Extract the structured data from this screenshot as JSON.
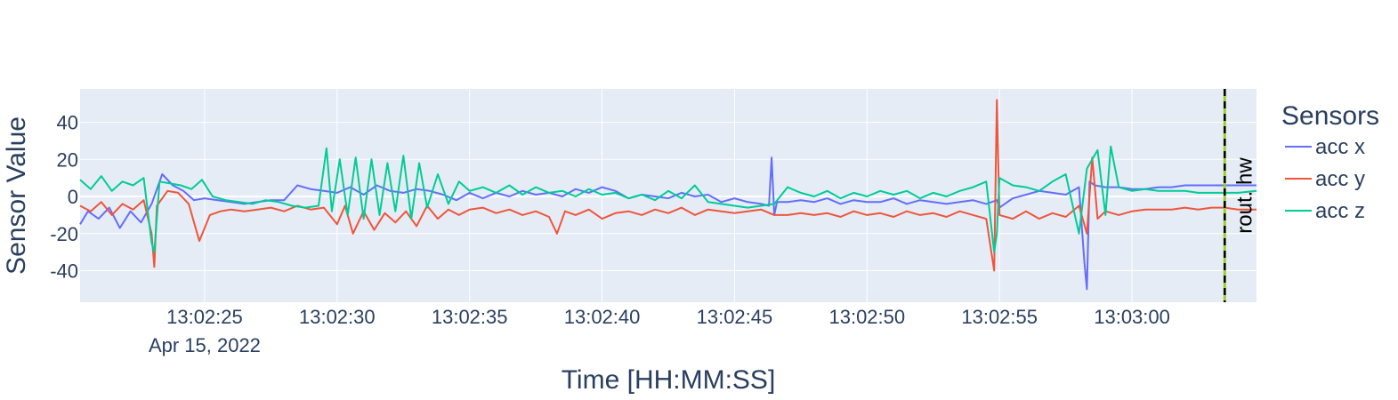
{
  "chart_data": {
    "type": "line",
    "xlabel": "Time [HH:MM:SS]",
    "ylabel": "Sensor Value",
    "x_range_seconds": [
      20.3,
      64.7
    ],
    "ylim": [
      -57,
      58
    ],
    "y_ticks": [
      -40,
      -20,
      0,
      20,
      40
    ],
    "x_ticks": [
      {
        "t": 25,
        "label": "13:02:25",
        "sub": "Apr 15, 2022"
      },
      {
        "t": 30,
        "label": "13:02:30",
        "sub": ""
      },
      {
        "t": 35,
        "label": "13:02:35",
        "sub": ""
      },
      {
        "t": 40,
        "label": "13:02:40",
        "sub": ""
      },
      {
        "t": 45,
        "label": "13:02:45",
        "sub": ""
      },
      {
        "t": 50,
        "label": "13:02:50",
        "sub": ""
      },
      {
        "t": 55,
        "label": "13:02:55",
        "sub": ""
      },
      {
        "t": 60,
        "label": "13:03:00",
        "sub": ""
      }
    ],
    "grid": true,
    "legend": {
      "title": "Sensors",
      "placement": "right"
    },
    "vertical_marker": {
      "t": 63.5,
      "label": "rout. hw"
    },
    "series": [
      {
        "name": "acc x",
        "color": "#636efa",
        "points": [
          [
            20.3,
            -15
          ],
          [
            20.6,
            -8
          ],
          [
            21,
            -12
          ],
          [
            21.4,
            -6
          ],
          [
            21.8,
            -17
          ],
          [
            22.2,
            -8
          ],
          [
            22.6,
            -14
          ],
          [
            23,
            -4
          ],
          [
            23.4,
            12
          ],
          [
            23.8,
            6
          ],
          [
            24.2,
            3
          ],
          [
            24.6,
            -2
          ],
          [
            25,
            -1
          ],
          [
            25.5,
            -2
          ],
          [
            26,
            -3
          ],
          [
            26.5,
            -4
          ],
          [
            27,
            -3
          ],
          [
            27.5,
            -2
          ],
          [
            28,
            -2
          ],
          [
            28.5,
            6
          ],
          [
            29,
            4
          ],
          [
            29.5,
            3
          ],
          [
            30,
            2
          ],
          [
            30.5,
            5
          ],
          [
            31,
            1
          ],
          [
            31.5,
            6
          ],
          [
            32,
            3
          ],
          [
            32.5,
            2
          ],
          [
            33,
            4
          ],
          [
            33.5,
            3
          ],
          [
            34,
            1
          ],
          [
            34.5,
            -2
          ],
          [
            35,
            2
          ],
          [
            35.5,
            -1
          ],
          [
            36,
            2
          ],
          [
            36.5,
            0
          ],
          [
            37,
            3
          ],
          [
            37.5,
            1
          ],
          [
            38,
            2
          ],
          [
            38.5,
            0
          ],
          [
            39,
            4
          ],
          [
            39.5,
            2
          ],
          [
            40,
            5
          ],
          [
            40.5,
            3
          ],
          [
            41,
            -1
          ],
          [
            41.5,
            1
          ],
          [
            42,
            0
          ],
          [
            42.5,
            -1
          ],
          [
            43,
            2
          ],
          [
            43.5,
            0
          ],
          [
            44,
            1
          ],
          [
            44.5,
            -3
          ],
          [
            45,
            -1
          ],
          [
            45.5,
            -3
          ],
          [
            46,
            -4
          ],
          [
            46.3,
            -5
          ],
          [
            46.4,
            21
          ],
          [
            46.5,
            -10
          ],
          [
            46.6,
            -3
          ],
          [
            47,
            -3
          ],
          [
            47.5,
            -2
          ],
          [
            48,
            -3
          ],
          [
            48.5,
            -1
          ],
          [
            49,
            -4
          ],
          [
            49.5,
            -2
          ],
          [
            50,
            -3
          ],
          [
            50.5,
            -3
          ],
          [
            51,
            -1
          ],
          [
            51.5,
            -4
          ],
          [
            52,
            -2
          ],
          [
            52.5,
            -3
          ],
          [
            53,
            -4
          ],
          [
            53.5,
            -3
          ],
          [
            54,
            -2
          ],
          [
            54.5,
            -4
          ],
          [
            54.9,
            -2
          ],
          [
            55,
            -6
          ],
          [
            55.5,
            -1
          ],
          [
            56,
            1
          ],
          [
            56.5,
            3
          ],
          [
            57,
            2
          ],
          [
            57.5,
            1
          ],
          [
            58,
            5
          ],
          [
            58.2,
            -35
          ],
          [
            58.3,
            -50
          ],
          [
            58.4,
            8
          ],
          [
            58.6,
            6
          ],
          [
            59,
            5
          ],
          [
            59.5,
            5
          ],
          [
            60,
            4
          ],
          [
            60.5,
            4
          ],
          [
            61,
            5
          ],
          [
            61.5,
            5
          ],
          [
            62,
            6
          ],
          [
            62.5,
            6
          ],
          [
            63,
            6
          ],
          [
            63.5,
            6
          ],
          [
            64,
            6
          ],
          [
            64.7,
            6
          ]
        ]
      },
      {
        "name": "acc y",
        "color": "#ef553b",
        "points": [
          [
            20.3,
            -5
          ],
          [
            20.7,
            -8
          ],
          [
            21.1,
            -3
          ],
          [
            21.5,
            -10
          ],
          [
            21.9,
            -4
          ],
          [
            22.3,
            -7
          ],
          [
            22.7,
            -2
          ],
          [
            23,
            -20
          ],
          [
            23.1,
            -38
          ],
          [
            23.2,
            -5
          ],
          [
            23.6,
            3
          ],
          [
            24,
            2
          ],
          [
            24.4,
            -4
          ],
          [
            24.8,
            -24
          ],
          [
            25.2,
            -10
          ],
          [
            25.6,
            -8
          ],
          [
            26,
            -7
          ],
          [
            26.5,
            -8
          ],
          [
            27,
            -7
          ],
          [
            27.5,
            -6
          ],
          [
            28,
            -8
          ],
          [
            28.5,
            -5
          ],
          [
            29,
            -7
          ],
          [
            29.5,
            -6
          ],
          [
            30,
            -15
          ],
          [
            30.3,
            -5
          ],
          [
            30.6,
            -20
          ],
          [
            31,
            -8
          ],
          [
            31.4,
            -18
          ],
          [
            31.8,
            -9
          ],
          [
            32.2,
            -14
          ],
          [
            32.6,
            -8
          ],
          [
            33,
            -16
          ],
          [
            33.4,
            -5
          ],
          [
            33.8,
            -12
          ],
          [
            34.2,
            -7
          ],
          [
            34.6,
            -10
          ],
          [
            35,
            -7
          ],
          [
            35.5,
            -6
          ],
          [
            36,
            -9
          ],
          [
            36.5,
            -7
          ],
          [
            37,
            -10
          ],
          [
            37.5,
            -8
          ],
          [
            38,
            -11
          ],
          [
            38.3,
            -20
          ],
          [
            38.6,
            -8
          ],
          [
            39,
            -10
          ],
          [
            39.5,
            -7
          ],
          [
            40,
            -12
          ],
          [
            40.5,
            -9
          ],
          [
            41,
            -8
          ],
          [
            41.5,
            -10
          ],
          [
            42,
            -7
          ],
          [
            42.5,
            -9
          ],
          [
            43,
            -6
          ],
          [
            43.5,
            -10
          ],
          [
            44,
            -7
          ],
          [
            44.5,
            -8
          ],
          [
            45,
            -9
          ],
          [
            45.5,
            -8
          ],
          [
            46,
            -7
          ],
          [
            46.5,
            -10
          ],
          [
            47,
            -10
          ],
          [
            47.5,
            -9
          ],
          [
            48,
            -10
          ],
          [
            48.5,
            -9
          ],
          [
            49,
            -11
          ],
          [
            49.5,
            -8
          ],
          [
            50,
            -10
          ],
          [
            50.5,
            -9
          ],
          [
            51,
            -11
          ],
          [
            51.5,
            -8
          ],
          [
            52,
            -10
          ],
          [
            52.5,
            -9
          ],
          [
            53,
            -11
          ],
          [
            53.5,
            -8
          ],
          [
            54,
            -10
          ],
          [
            54.5,
            -12
          ],
          [
            54.8,
            -40
          ],
          [
            54.9,
            52
          ],
          [
            55,
            -10
          ],
          [
            55.5,
            -12
          ],
          [
            56,
            -8
          ],
          [
            56.5,
            -12
          ],
          [
            57,
            -9
          ],
          [
            57.5,
            -11
          ],
          [
            58,
            -5
          ],
          [
            58.3,
            -20
          ],
          [
            58.5,
            21
          ],
          [
            58.7,
            -12
          ],
          [
            59,
            -8
          ],
          [
            59.5,
            -10
          ],
          [
            60,
            -8
          ],
          [
            60.5,
            -7
          ],
          [
            61,
            -7
          ],
          [
            61.5,
            -7
          ],
          [
            62,
            -6
          ],
          [
            62.5,
            -7
          ],
          [
            63,
            -6
          ],
          [
            63.5,
            -6
          ],
          [
            64,
            -7
          ],
          [
            64.7,
            -7
          ]
        ]
      },
      {
        "name": "acc z",
        "color": "#00cc96",
        "points": [
          [
            20.3,
            9
          ],
          [
            20.7,
            4
          ],
          [
            21.1,
            11
          ],
          [
            21.5,
            3
          ],
          [
            21.9,
            8
          ],
          [
            22.3,
            6
          ],
          [
            22.7,
            10
          ],
          [
            23,
            -25
          ],
          [
            23.1,
            -30
          ],
          [
            23.3,
            8
          ],
          [
            23.7,
            7
          ],
          [
            24.1,
            6
          ],
          [
            24.5,
            4
          ],
          [
            24.9,
            9
          ],
          [
            25.3,
            0
          ],
          [
            25.8,
            -2
          ],
          [
            26.3,
            -3
          ],
          [
            26.8,
            -4
          ],
          [
            27.3,
            -2
          ],
          [
            27.8,
            -3
          ],
          [
            28.3,
            -5
          ],
          [
            28.8,
            -6
          ],
          [
            29.3,
            -5
          ],
          [
            29.6,
            26
          ],
          [
            29.8,
            -8
          ],
          [
            30.1,
            20
          ],
          [
            30.4,
            -10
          ],
          [
            30.7,
            21
          ],
          [
            31,
            -12
          ],
          [
            31.3,
            20
          ],
          [
            31.6,
            -10
          ],
          [
            31.9,
            18
          ],
          [
            32.2,
            -8
          ],
          [
            32.5,
            22
          ],
          [
            32.8,
            -12
          ],
          [
            33.1,
            18
          ],
          [
            33.4,
            -6
          ],
          [
            33.8,
            12
          ],
          [
            34.2,
            -4
          ],
          [
            34.6,
            8
          ],
          [
            35,
            3
          ],
          [
            35.5,
            5
          ],
          [
            36,
            2
          ],
          [
            36.5,
            6
          ],
          [
            37,
            1
          ],
          [
            37.5,
            5
          ],
          [
            38,
            2
          ],
          [
            38.5,
            3
          ],
          [
            39,
            0
          ],
          [
            39.5,
            4
          ],
          [
            40,
            1
          ],
          [
            40.5,
            2
          ],
          [
            41,
            -1
          ],
          [
            41.5,
            1
          ],
          [
            42,
            -2
          ],
          [
            42.5,
            3
          ],
          [
            43,
            -1
          ],
          [
            43.5,
            6
          ],
          [
            44,
            -3
          ],
          [
            44.5,
            -4
          ],
          [
            45,
            -5
          ],
          [
            45.5,
            -6
          ],
          [
            46,
            -5
          ],
          [
            46.5,
            -4
          ],
          [
            47,
            5
          ],
          [
            47.5,
            2
          ],
          [
            48,
            0
          ],
          [
            48.5,
            3
          ],
          [
            49,
            -1
          ],
          [
            49.5,
            2
          ],
          [
            50,
            0
          ],
          [
            50.5,
            3
          ],
          [
            51,
            1
          ],
          [
            51.5,
            3
          ],
          [
            52,
            -1
          ],
          [
            52.5,
            2
          ],
          [
            53,
            0
          ],
          [
            53.5,
            3
          ],
          [
            54,
            5
          ],
          [
            54.5,
            8
          ],
          [
            54.8,
            -30
          ],
          [
            54.9,
            -20
          ],
          [
            55,
            10
          ],
          [
            55.5,
            6
          ],
          [
            56,
            5
          ],
          [
            56.5,
            3
          ],
          [
            57,
            8
          ],
          [
            57.5,
            12
          ],
          [
            58,
            -20
          ],
          [
            58.3,
            15
          ],
          [
            58.7,
            25
          ],
          [
            59,
            -10
          ],
          [
            59.2,
            27
          ],
          [
            59.5,
            5
          ],
          [
            60,
            3
          ],
          [
            60.5,
            4
          ],
          [
            61,
            3
          ],
          [
            61.5,
            3
          ],
          [
            62,
            3
          ],
          [
            62.5,
            2
          ],
          [
            63,
            2
          ],
          [
            63.5,
            2
          ],
          [
            64,
            2
          ],
          [
            64.7,
            3
          ]
        ]
      }
    ]
  }
}
